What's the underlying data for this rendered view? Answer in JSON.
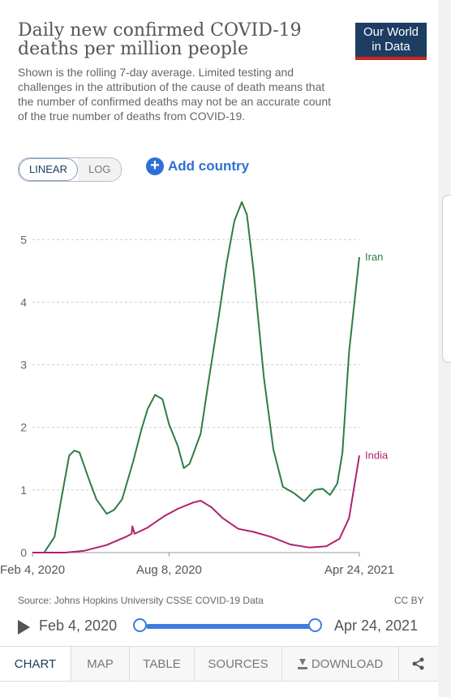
{
  "header": {
    "title": "Daily new confirmed COVID-19 deaths per million people",
    "subtitle": "Shown is the rolling 7-day average. Limited testing and challenges in the attribution of the cause of death means that the number of confirmed deaths may not be an accurate count of the true number of deaths from COVID-19.",
    "logo_line1": "Our World",
    "logo_line2": "in Data"
  },
  "controls": {
    "linear_label": "LINEAR",
    "log_label": "LOG",
    "add_country_label": "Add country",
    "scale": "linear"
  },
  "chart_data": {
    "type": "line",
    "title": "Daily new confirmed COVID-19 deaths per million people",
    "xlabel": "",
    "ylabel": "",
    "x_range": [
      "2020-02-04",
      "2021-04-24"
    ],
    "ylim": [
      0,
      5.6
    ],
    "y_ticks": [
      "0",
      "1",
      "2",
      "3",
      "4",
      "5"
    ],
    "x_ticks": [
      "Feb 4, 2020",
      "Aug 8, 2020",
      "Apr 24, 2021"
    ],
    "grid": "horizontal-dashed",
    "legend": "line-end-labels",
    "series": [
      {
        "name": "Iran",
        "color": "#2e7d44",
        "points": [
          [
            "2020-02-04",
            0
          ],
          [
            "2020-02-20",
            0
          ],
          [
            "2020-03-05",
            0.25
          ],
          [
            "2020-03-15",
            0.9
          ],
          [
            "2020-03-25",
            1.55
          ],
          [
            "2020-04-01",
            1.63
          ],
          [
            "2020-04-08",
            1.6
          ],
          [
            "2020-04-20",
            1.2
          ],
          [
            "2020-05-01",
            0.85
          ],
          [
            "2020-05-15",
            0.62
          ],
          [
            "2020-05-25",
            0.68
          ],
          [
            "2020-06-05",
            0.85
          ],
          [
            "2020-06-20",
            1.45
          ],
          [
            "2020-07-01",
            1.95
          ],
          [
            "2020-07-10",
            2.3
          ],
          [
            "2020-07-20",
            2.52
          ],
          [
            "2020-07-30",
            2.45
          ],
          [
            "2020-08-08",
            2.05
          ],
          [
            "2020-08-20",
            1.7
          ],
          [
            "2020-08-28",
            1.35
          ],
          [
            "2020-09-05",
            1.42
          ],
          [
            "2020-09-20",
            1.9
          ],
          [
            "2020-10-01",
            2.75
          ],
          [
            "2020-10-15",
            3.8
          ],
          [
            "2020-10-25",
            4.6
          ],
          [
            "2020-11-05",
            5.3
          ],
          [
            "2020-11-15",
            5.6
          ],
          [
            "2020-11-22",
            5.4
          ],
          [
            "2020-12-01",
            4.5
          ],
          [
            "2020-12-15",
            2.8
          ],
          [
            "2020-12-28",
            1.65
          ],
          [
            "2021-01-10",
            1.05
          ],
          [
            "2021-01-25",
            0.95
          ],
          [
            "2021-02-08",
            0.82
          ],
          [
            "2021-02-22",
            1.0
          ],
          [
            "2021-03-05",
            1.02
          ],
          [
            "2021-03-15",
            0.92
          ],
          [
            "2021-03-25",
            1.1
          ],
          [
            "2021-04-01",
            1.6
          ],
          [
            "2021-04-10",
            3.2
          ],
          [
            "2021-04-24",
            4.72
          ]
        ]
      },
      {
        "name": "India",
        "color": "#b0206f",
        "points": [
          [
            "2020-02-04",
            0
          ],
          [
            "2020-03-20",
            0
          ],
          [
            "2020-04-15",
            0.03
          ],
          [
            "2020-05-15",
            0.12
          ],
          [
            "2020-06-10",
            0.25
          ],
          [
            "2020-06-18",
            0.3
          ],
          [
            "2020-06-19",
            0.42
          ],
          [
            "2020-06-22",
            0.3
          ],
          [
            "2020-07-10",
            0.4
          ],
          [
            "2020-08-01",
            0.58
          ],
          [
            "2020-08-20",
            0.7
          ],
          [
            "2020-09-10",
            0.8
          ],
          [
            "2020-09-20",
            0.83
          ],
          [
            "2020-10-05",
            0.72
          ],
          [
            "2020-10-20",
            0.55
          ],
          [
            "2020-11-10",
            0.38
          ],
          [
            "2020-12-01",
            0.33
          ],
          [
            "2020-12-25",
            0.25
          ],
          [
            "2021-01-20",
            0.13
          ],
          [
            "2021-02-15",
            0.08
          ],
          [
            "2021-03-10",
            0.1
          ],
          [
            "2021-03-28",
            0.22
          ],
          [
            "2021-04-10",
            0.55
          ],
          [
            "2021-04-24",
            1.55
          ]
        ]
      }
    ]
  },
  "footer": {
    "source": "Source: Johns Hopkins University CSSE COVID-19 Data",
    "license": "CC BY"
  },
  "timeline": {
    "start_label": "Feb 4, 2020",
    "end_label": "Apr 24, 2021"
  },
  "tabs": [
    {
      "label": "CHART"
    },
    {
      "label": "MAP"
    },
    {
      "label": "TABLE"
    },
    {
      "label": "SOURCES"
    },
    {
      "label": "DOWNLOAD"
    }
  ]
}
